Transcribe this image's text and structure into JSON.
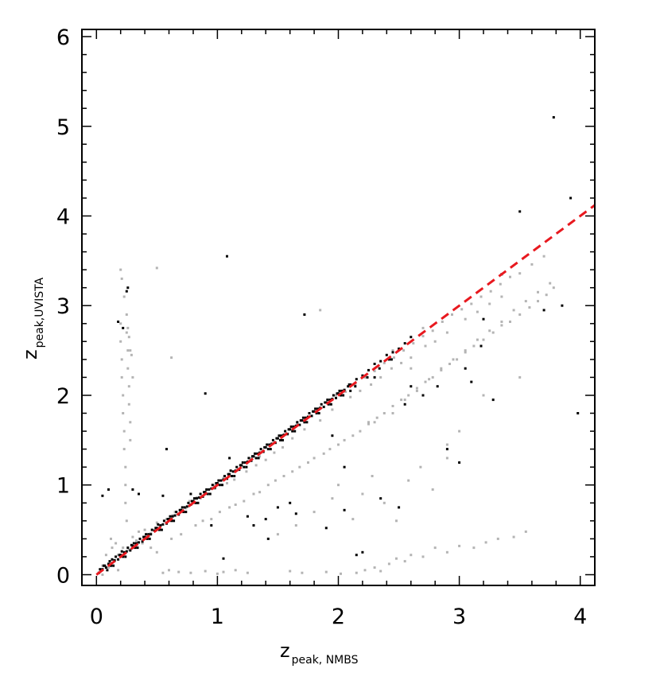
{
  "chart_data": {
    "type": "scatter",
    "title": "",
    "xlabel": "z",
    "xlabel_sub": "peak, NMBS",
    "ylabel": "z",
    "ylabel_sub": "peak,UVISTA",
    "xlim": [
      -0.12,
      4.12
    ],
    "ylim": [
      -0.12,
      6.08
    ],
    "grid": false,
    "x_ticks": [
      0,
      1,
      2,
      3,
      4
    ],
    "y_ticks": [
      0,
      1,
      2,
      3,
      4,
      5,
      6
    ],
    "colors": {
      "black_points": "#000000",
      "gray_points": "#b4b4b4",
      "line": "#e8191f"
    },
    "series": [
      {
        "style": "dashed-line",
        "x": [
          0.0,
          4.0,
          4.12
        ],
        "y": [
          0.0,
          4.0,
          4.12
        ]
      },
      {
        "style": "gray-points",
        "x": [
          0.05,
          0.12,
          0.18,
          0.22,
          0.27,
          0.33,
          0.38,
          0.45,
          0.52,
          0.58,
          0.63,
          0.7,
          0.77,
          0.83,
          0.9,
          0.97,
          1.05,
          1.12,
          1.2,
          1.28,
          1.35,
          1.43,
          1.5,
          1.58,
          1.66,
          1.74,
          1.82,
          1.9,
          1.98,
          2.06,
          2.14,
          2.22,
          2.3,
          2.38,
          2.46,
          2.54,
          2.62,
          2.7,
          2.78,
          2.86,
          2.94,
          3.02,
          3.1,
          3.18,
          3.26,
          3.34,
          3.42,
          3.5,
          3.6,
          3.7,
          1.62,
          1.72,
          1.85,
          1.95,
          2.1,
          2.18,
          2.27,
          2.35,
          2.44,
          2.52,
          2.6,
          2.72,
          2.8,
          2.9,
          3.05,
          3.15,
          3.25,
          3.35,
          0.2,
          0.2,
          0.21,
          0.21,
          0.22,
          0.22,
          0.23,
          0.23,
          0.24,
          0.24,
          0.24,
          0.25,
          0.25,
          0.26,
          0.26,
          0.27,
          0.27,
          0.28,
          0.28,
          0.2,
          0.21,
          0.23,
          0.25,
          0.26,
          0.27,
          0.28,
          0.29,
          0.3,
          0.45,
          0.5,
          0.62,
          0.7,
          0.82,
          0.88,
          0.95,
          1.02,
          1.1,
          1.15,
          1.22,
          1.3,
          1.35,
          1.42,
          1.48,
          1.55,
          1.62,
          1.68,
          1.75,
          1.8,
          1.88,
          1.93,
          2.0,
          2.05,
          2.12,
          2.18,
          2.25,
          2.32,
          2.38,
          2.45,
          2.52,
          2.58,
          2.65,
          2.72,
          2.78,
          2.85,
          2.92,
          2.98,
          3.05,
          3.12,
          3.2,
          3.28,
          3.35,
          3.42,
          3.5,
          3.58,
          3.65,
          3.72,
          3.78,
          0.55,
          0.6,
          0.68,
          0.78,
          0.9,
          1.0,
          1.05,
          1.15,
          1.25,
          1.6,
          1.7,
          1.9,
          2.02,
          2.15,
          2.22,
          2.3,
          2.35,
          2.42,
          2.48,
          2.55,
          2.6,
          2.7,
          2.8,
          2.9,
          3.0,
          3.12,
          3.22,
          3.32,
          3.45,
          3.55,
          1.5,
          1.65,
          1.8,
          1.95,
          2.0,
          2.12,
          2.2,
          2.28,
          2.38,
          2.48,
          2.58,
          2.68,
          2.78,
          2.9,
          3.0,
          0.05,
          0.08,
          0.1,
          0.13,
          0.15,
          0.18,
          0.12,
          0.16,
          0.3,
          0.35,
          0.4,
          0.5,
          0.58,
          0.65,
          0.74,
          0.8,
          0.86,
          0.92,
          0.98,
          1.08,
          1.14,
          1.24,
          1.32,
          1.4,
          1.47,
          1.54,
          2.3,
          2.45,
          2.55,
          2.65,
          2.75,
          2.85,
          2.95,
          3.05,
          3.15,
          3.25,
          3.35,
          3.45,
          3.55,
          3.65,
          3.75,
          0.5,
          0.62,
          2.6,
          1.85,
          2.25,
          2.9,
          3.2,
          3.5,
          2.45,
          2.7
        ],
        "y": [
          0.0,
          0.13,
          0.22,
          0.3,
          0.28,
          0.38,
          0.35,
          0.46,
          0.55,
          0.58,
          0.66,
          0.72,
          0.82,
          0.86,
          0.92,
          1.0,
          1.08,
          1.1,
          1.22,
          1.3,
          1.32,
          1.44,
          1.52,
          1.56,
          1.68,
          1.75,
          1.8,
          1.92,
          2.0,
          2.04,
          2.12,
          2.2,
          2.27,
          2.36,
          2.42,
          2.5,
          2.58,
          2.66,
          2.72,
          2.82,
          2.9,
          2.96,
          3.02,
          3.1,
          3.16,
          3.24,
          3.32,
          3.36,
          3.46,
          3.55,
          1.52,
          1.62,
          1.72,
          1.84,
          1.98,
          2.05,
          2.12,
          2.2,
          2.3,
          2.36,
          2.42,
          2.55,
          2.6,
          2.7,
          2.85,
          2.93,
          3.02,
          3.1,
          2.8,
          2.6,
          2.4,
          2.2,
          2.0,
          1.8,
          1.6,
          1.4,
          1.2,
          1.0,
          0.8,
          0.6,
          2.7,
          2.5,
          2.3,
          2.1,
          1.9,
          1.7,
          1.5,
          3.4,
          3.3,
          3.1,
          2.9,
          2.75,
          2.65,
          2.5,
          2.45,
          2.2,
          0.3,
          0.25,
          0.4,
          0.45,
          0.55,
          0.6,
          0.62,
          0.7,
          0.75,
          0.78,
          0.82,
          0.9,
          0.92,
          1.0,
          1.05,
          1.1,
          1.15,
          1.2,
          1.25,
          1.3,
          1.35,
          1.4,
          1.45,
          1.5,
          1.55,
          1.6,
          1.68,
          1.75,
          1.8,
          1.88,
          1.95,
          2.0,
          2.08,
          2.15,
          2.2,
          2.28,
          2.35,
          2.4,
          2.48,
          2.55,
          2.62,
          2.7,
          2.78,
          2.82,
          2.9,
          2.98,
          3.05,
          3.12,
          3.2,
          0.02,
          0.05,
          0.03,
          0.02,
          0.04,
          0.01,
          0.03,
          0.05,
          0.02,
          0.04,
          0.02,
          0.03,
          0.01,
          0.02,
          0.05,
          0.08,
          0.04,
          0.12,
          0.18,
          0.15,
          0.22,
          0.2,
          0.3,
          0.25,
          0.32,
          0.3,
          0.36,
          0.4,
          0.42,
          0.48,
          0.45,
          0.55,
          0.7,
          0.85,
          1.0,
          0.62,
          0.9,
          1.1,
          0.8,
          0.6,
          1.05,
          1.2,
          0.95,
          1.3,
          1.6,
          0.1,
          0.22,
          0.08,
          0.3,
          0.15,
          0.05,
          0.4,
          0.35,
          0.42,
          0.48,
          0.5,
          0.58,
          0.62,
          0.7,
          0.74,
          0.82,
          0.85,
          0.9,
          0.96,
          1.02,
          1.06,
          1.15,
          1.22,
          1.28,
          1.36,
          1.42,
          1.7,
          1.8,
          1.95,
          2.05,
          2.18,
          2.3,
          2.4,
          2.5,
          2.62,
          2.72,
          2.82,
          2.95,
          3.05,
          3.15,
          3.25,
          3.42,
          2.42,
          2.3,
          2.95,
          1.7,
          1.45,
          2.0,
          2.2,
          2.5,
          2.75
        ]
      },
      {
        "style": "black-points",
        "x": [
          0.02,
          0.05,
          0.08,
          0.1,
          0.12,
          0.15,
          0.18,
          0.2,
          0.22,
          0.25,
          0.28,
          0.3,
          0.32,
          0.35,
          0.38,
          0.4,
          0.42,
          0.45,
          0.48,
          0.5,
          0.52,
          0.55,
          0.58,
          0.6,
          0.62,
          0.65,
          0.68,
          0.7,
          0.72,
          0.75,
          0.78,
          0.8,
          0.82,
          0.85,
          0.88,
          0.9,
          0.92,
          0.95,
          0.98,
          1.0,
          1.02,
          1.05,
          1.08,
          1.1,
          1.12,
          1.15,
          1.18,
          1.2,
          1.22,
          1.25,
          1.28,
          1.3,
          1.32,
          1.35,
          1.38,
          1.4,
          1.42,
          1.45,
          1.48,
          1.5,
          1.52,
          1.55,
          1.58,
          1.6,
          1.62,
          1.65,
          1.68,
          1.7,
          1.72,
          1.75,
          1.78,
          1.8,
          1.82,
          1.85,
          1.88,
          1.9,
          1.92,
          1.95,
          1.98,
          2.0,
          2.02,
          2.05,
          2.08,
          2.1,
          2.15,
          2.2,
          2.25,
          2.3,
          2.35,
          2.4,
          2.45,
          2.5,
          2.55,
          2.6,
          0.06,
          0.11,
          0.16,
          0.21,
          0.26,
          0.31,
          0.36,
          0.41,
          0.46,
          0.51,
          0.56,
          0.61,
          0.66,
          0.71,
          0.76,
          0.81,
          0.86,
          0.91,
          0.96,
          1.01,
          1.06,
          1.11,
          1.16,
          1.21,
          1.26,
          1.31,
          1.36,
          1.41,
          1.46,
          1.51,
          1.56,
          1.61,
          1.66,
          1.71,
          1.76,
          1.81,
          1.86,
          1.91,
          1.96,
          2.01,
          0.09,
          0.14,
          0.24,
          0.34,
          0.44,
          0.54,
          0.64,
          0.74,
          0.84,
          0.94,
          1.04,
          1.14,
          1.24,
          1.34,
          1.44,
          1.54,
          1.64,
          1.74,
          1.84,
          1.94,
          2.04,
          2.14,
          2.24,
          2.34,
          2.44,
          0.03,
          0.07,
          0.13,
          0.19,
          0.23,
          0.29,
          0.33,
          0.39,
          0.43,
          0.49,
          0.53,
          0.59,
          0.63,
          0.69,
          0.73,
          0.79,
          0.83,
          0.89,
          0.93,
          0.99,
          1.03,
          1.09,
          1.13,
          1.19,
          1.23,
          1.29,
          1.33,
          1.39,
          1.43,
          1.49,
          1.53,
          1.59,
          1.63,
          1.69,
          1.73,
          1.79,
          1.83,
          1.89,
          1.93,
          1.99,
          2.03,
          2.09,
          0.26,
          0.25,
          0.18,
          0.22,
          0.35,
          1.08,
          1.72,
          2.1,
          2.3,
          1.95,
          2.6,
          2.82,
          3.1,
          3.28,
          3.5,
          3.7,
          3.78,
          3.92,
          3.98,
          3.35,
          3.05,
          2.9,
          2.42,
          2.2,
          1.4,
          1.6,
          1.3,
          1.05,
          0.55,
          0.3,
          0.58,
          0.9,
          1.5,
          2.05,
          2.15,
          2.35,
          2.55,
          3.18,
          0.05,
          0.1,
          1.65,
          0.95,
          1.9,
          1.1,
          2.05,
          2.5,
          2.7,
          3.0,
          3.2,
          3.85,
          0.62,
          0.78,
          1.25,
          1.42
        ],
        "y": [
          0.02,
          0.06,
          0.08,
          0.12,
          0.1,
          0.16,
          0.17,
          0.22,
          0.2,
          0.26,
          0.27,
          0.32,
          0.3,
          0.36,
          0.37,
          0.42,
          0.4,
          0.45,
          0.49,
          0.52,
          0.5,
          0.56,
          0.57,
          0.62,
          0.6,
          0.66,
          0.67,
          0.72,
          0.7,
          0.76,
          0.78,
          0.82,
          0.8,
          0.86,
          0.87,
          0.92,
          0.9,
          0.96,
          0.97,
          1.02,
          1.0,
          1.06,
          1.07,
          1.12,
          1.1,
          1.16,
          1.17,
          1.22,
          1.2,
          1.26,
          1.27,
          1.32,
          1.3,
          1.36,
          1.37,
          1.42,
          1.4,
          1.46,
          1.47,
          1.52,
          1.5,
          1.56,
          1.57,
          1.62,
          1.6,
          1.66,
          1.67,
          1.72,
          1.7,
          1.76,
          1.77,
          1.82,
          1.8,
          1.86,
          1.87,
          1.92,
          1.9,
          1.96,
          1.97,
          2.02,
          2.0,
          2.06,
          2.1,
          2.12,
          2.18,
          2.22,
          2.28,
          2.35,
          2.38,
          2.45,
          2.48,
          2.52,
          2.58,
          2.65,
          0.1,
          0.15,
          0.2,
          0.26,
          0.3,
          0.35,
          0.4,
          0.45,
          0.5,
          0.56,
          0.6,
          0.65,
          0.7,
          0.75,
          0.8,
          0.85,
          0.9,
          0.95,
          1.0,
          1.05,
          1.1,
          1.16,
          1.2,
          1.25,
          1.3,
          1.35,
          1.4,
          1.45,
          1.5,
          1.55,
          1.6,
          1.65,
          1.7,
          1.75,
          1.8,
          1.85,
          1.9,
          1.95,
          2.0,
          2.05,
          0.05,
          0.1,
          0.2,
          0.3,
          0.4,
          0.5,
          0.6,
          0.7,
          0.8,
          0.9,
          1.0,
          1.1,
          1.2,
          1.3,
          1.4,
          1.5,
          1.6,
          1.7,
          1.8,
          1.9,
          2.0,
          2.1,
          2.2,
          2.3,
          2.4,
          0.06,
          0.1,
          0.17,
          0.22,
          0.25,
          0.33,
          0.35,
          0.42,
          0.45,
          0.52,
          0.55,
          0.62,
          0.65,
          0.72,
          0.75,
          0.82,
          0.85,
          0.92,
          0.95,
          1.02,
          1.05,
          1.12,
          1.15,
          1.22,
          1.25,
          1.32,
          1.35,
          1.42,
          1.45,
          1.52,
          1.55,
          1.62,
          1.65,
          1.72,
          1.75,
          1.82,
          1.85,
          1.92,
          1.95,
          2.02,
          2.05,
          2.12,
          3.2,
          3.16,
          2.82,
          2.75,
          0.9,
          3.55,
          2.9,
          2.05,
          2.2,
          1.55,
          2.1,
          2.1,
          2.15,
          1.95,
          4.05,
          2.95,
          5.1,
          4.2,
          1.8,
          3.35,
          2.3,
          1.4,
          2.4,
          0.25,
          0.62,
          0.8,
          0.55,
          0.18,
          0.88,
          0.95,
          1.4,
          2.02,
          0.75,
          0.72,
          0.22,
          0.85,
          1.9,
          2.55,
          0.88,
          0.95,
          0.68,
          0.55,
          0.52,
          1.3,
          1.2,
          0.75,
          2.0,
          1.25,
          2.85,
          3.0,
          0.62,
          0.9,
          0.65,
          0.4
        ]
      }
    ]
  }
}
